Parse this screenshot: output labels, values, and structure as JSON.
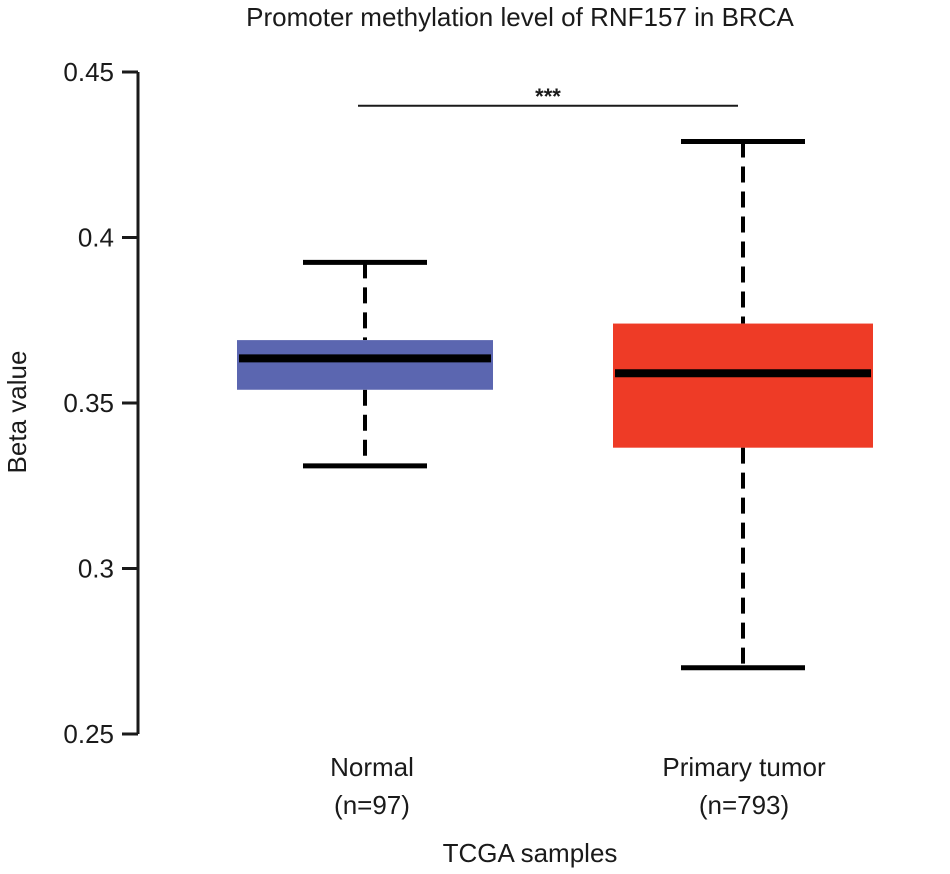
{
  "chart_data": {
    "type": "boxplot",
    "title": "Promoter methylation level of RNF157 in BRCA",
    "xlabel": "TCGA samples",
    "ylabel": "Beta  value",
    "ylim": [
      0.25,
      0.45
    ],
    "yticks": [
      {
        "value": 0.25,
        "label": "0.25"
      },
      {
        "value": 0.3,
        "label": "0.3"
      },
      {
        "value": 0.35,
        "label": "0.35"
      },
      {
        "value": 0.4,
        "label": "0.4"
      },
      {
        "value": 0.45,
        "label": "0.45"
      }
    ],
    "groups": [
      {
        "name": "Normal",
        "n_label": "(n=97)",
        "color": "#5b66b0",
        "whisker_low": 0.331,
        "q1": 0.354,
        "median": 0.3635,
        "q3": 0.369,
        "whisker_high": 0.3925
      },
      {
        "name": "Primary tumor",
        "n_label": "(n=793)",
        "color": "#ee3b26",
        "whisker_low": 0.27,
        "q1": 0.3365,
        "median": 0.359,
        "q3": 0.374,
        "whisker_high": 0.429
      }
    ],
    "significance": {
      "label": "***",
      "from": 0,
      "to": 1,
      "y": 0.441
    }
  }
}
